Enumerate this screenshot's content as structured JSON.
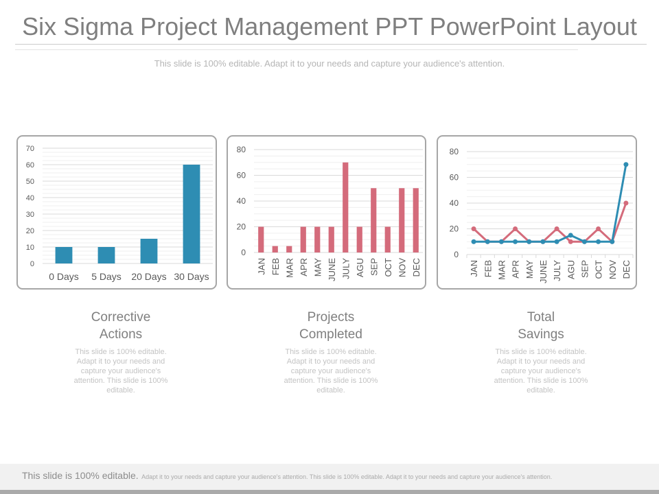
{
  "title": "Six Sigma Project Management PPT PowerPoint Layout",
  "subtitle": "This slide is 100% editable. Adapt it to your needs and capture your audience's attention.",
  "colors": {
    "blue": "#2e8db3",
    "pink": "#d46b7b",
    "grid": "#e2e2e2",
    "axis_text": "#595959"
  },
  "captions": [
    {
      "title_line1": "Corrective",
      "title_line2": "Actions",
      "body": "This slide is 100% editable. Adapt it to your needs and capture your audience's attention. This slide is 100% editable."
    },
    {
      "title_line1": "Projects",
      "title_line2": "Completed",
      "body": "This slide is 100% editable. Adapt it to your needs and capture your audience's attention. This slide is 100% editable."
    },
    {
      "title_line1": "Total",
      "title_line2": "Savings",
      "body": "This slide is 100% editable. Adapt it to your needs and capture your audience's attention. This slide is 100% editable."
    }
  ],
  "footer": {
    "lead": "This slide is 100% editable.",
    "rest": "Adapt it to your needs and capture your audience's attention. This slide is 100% editable. Adapt it to your needs and capture your audience's attention."
  },
  "chart_data": [
    {
      "type": "bar",
      "categories": [
        "0 Days",
        "5 Days",
        "20 Days",
        "30 Days"
      ],
      "values": [
        10,
        10,
        15,
        60
      ],
      "ylim": [
        0,
        70
      ],
      "yticks": [
        0,
        10,
        20,
        30,
        40,
        50,
        60,
        70
      ],
      "grid": true,
      "color": "#2e8db3"
    },
    {
      "type": "bar",
      "categories": [
        "JAN",
        "FEB",
        "MAR",
        "APR",
        "MAY",
        "JUNE",
        "JULY",
        "AGU",
        "SEP",
        "OCT",
        "NOV",
        "DEC"
      ],
      "values": [
        20,
        5,
        5,
        20,
        20,
        20,
        70,
        20,
        50,
        20,
        50,
        50
      ],
      "ylim": [
        0,
        80
      ],
      "yticks": [
        0,
        20,
        40,
        60,
        80
      ],
      "grid": true,
      "color": "#d46b7b"
    },
    {
      "type": "line",
      "categories": [
        "JAN",
        "FEB",
        "MAR",
        "APR",
        "MAY",
        "JUNE",
        "JULY",
        "AGU",
        "SEP",
        "OCT",
        "NOV",
        "DEC"
      ],
      "series": [
        {
          "values": [
            20,
            10,
            10,
            20,
            10,
            10,
            20,
            10,
            10,
            20,
            10,
            40
          ],
          "color": "#d46b7b"
        },
        {
          "values": [
            10,
            10,
            10,
            10,
            10,
            10,
            10,
            15,
            10,
            10,
            10,
            70
          ],
          "color": "#2e8db3"
        }
      ],
      "ylim": [
        0,
        80
      ],
      "yticks": [
        0,
        20,
        40,
        60,
        80
      ],
      "grid": true
    }
  ]
}
